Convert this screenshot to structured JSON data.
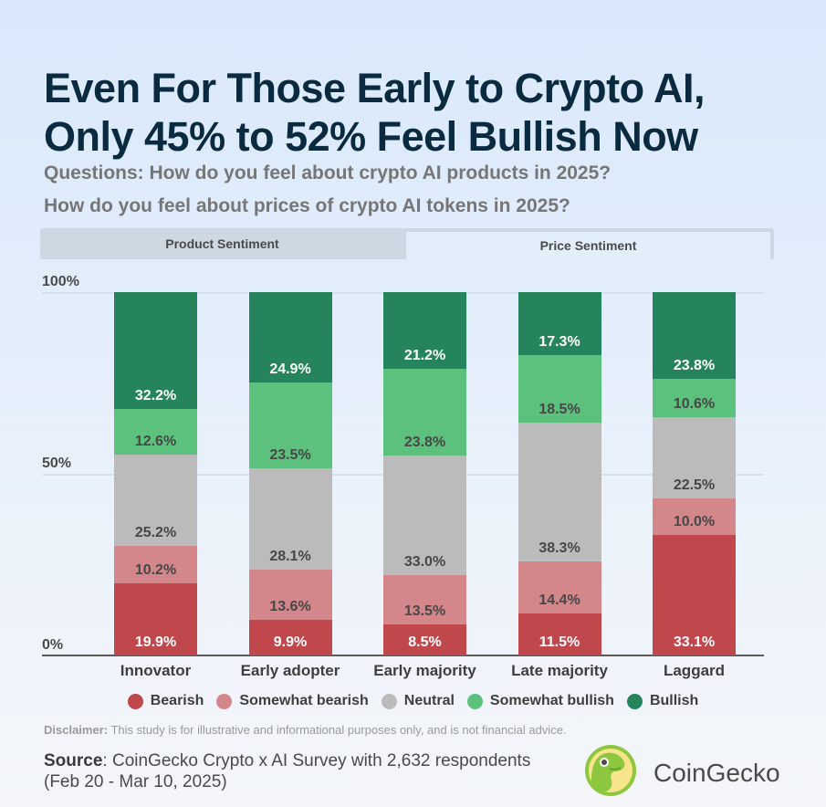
{
  "header": {
    "title_line1": "Even For Those Early to Crypto AI,",
    "title_line2": "Only 45% to 52% Feel Bullish Now",
    "subtitle_line1": "Questions: How do you feel about crypto AI products in 2025?",
    "subtitle_line2": "How do you feel about prices of crypto AI tokens in 2025?"
  },
  "tabs": [
    {
      "label": "Product Sentiment",
      "active": false
    },
    {
      "label": "Price Sentiment",
      "active": true
    }
  ],
  "legend": [
    {
      "label": "Bearish",
      "color": "#c0474b"
    },
    {
      "label": "Somewhat bearish",
      "color": "#d4878a"
    },
    {
      "label": "Neutral",
      "color": "#bbbbbb"
    },
    {
      "label": "Somewhat bullish",
      "color": "#5bc17c"
    },
    {
      "label": "Bullish",
      "color": "#25845c"
    }
  ],
  "footer": {
    "disclaimer_label": "Disclaimer:",
    "disclaimer_text": " This study is for illustrative and informational purposes only, and is not financial advice.",
    "source_label": "Source",
    "source_text": ": CoinGecko Crypto x AI Survey with 2,632 respondents (Feb 20 - Mar 10, 2025)",
    "brand": "CoinGecko"
  },
  "chart_data": {
    "type": "bar",
    "stacked": true,
    "title": "Even For Those Early to Crypto AI, Only 45% to 52% Feel Bullish Now",
    "subtitle": "Price Sentiment",
    "xlabel": "",
    "ylabel": "",
    "ylim": [
      0,
      100
    ],
    "yticks": [
      "0%",
      "50%",
      "100%"
    ],
    "grid": true,
    "legend_position": "bottom",
    "categories": [
      "Innovator",
      "Early adopter",
      "Early majority",
      "Late majority",
      "Laggard"
    ],
    "series": [
      {
        "name": "Bearish",
        "color": "#c0474b",
        "values": [
          19.9,
          9.9,
          8.5,
          11.5,
          33.1
        ]
      },
      {
        "name": "Somewhat bearish",
        "color": "#d4878a",
        "values": [
          10.2,
          13.6,
          13.5,
          14.4,
          10.0
        ]
      },
      {
        "name": "Neutral",
        "color": "#bbbbbb",
        "values": [
          25.2,
          28.1,
          33.0,
          38.3,
          22.5
        ]
      },
      {
        "name": "Somewhat bullish",
        "color": "#5bc17c",
        "values": [
          12.6,
          23.5,
          23.8,
          18.5,
          10.6
        ]
      },
      {
        "name": "Bullish",
        "color": "#25845c",
        "values": [
          32.2,
          24.9,
          21.2,
          17.3,
          23.8
        ]
      }
    ]
  }
}
